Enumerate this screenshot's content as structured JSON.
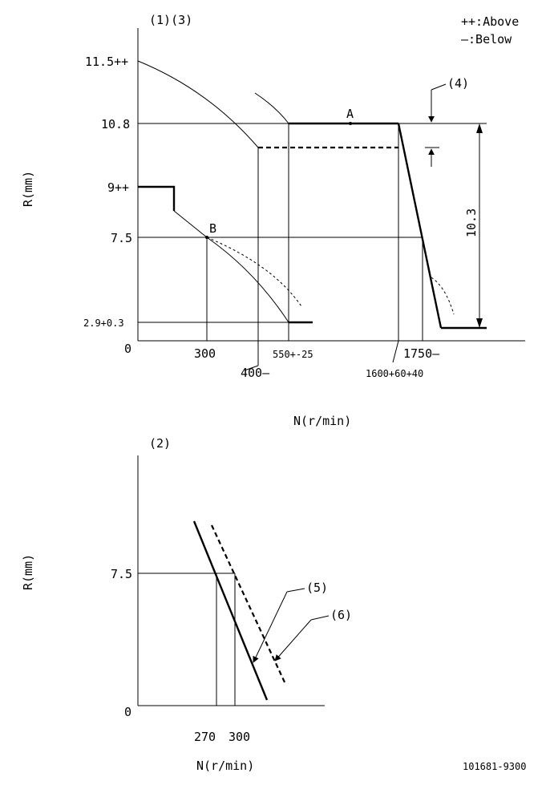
{
  "legend": {
    "above": "++:Above",
    "below": "—:Below"
  },
  "top_chart": {
    "label": "(1)(3)",
    "ylabel": "R(mm)",
    "xlabel": "N(r/min)",
    "y_ticks": [
      "11.5++",
      "10.8",
      "9++",
      "7.5",
      "2.9+0.3",
      "0"
    ],
    "x_ticks": [
      "300",
      "400—",
      "550+-25",
      "1600+60+40",
      "1750—"
    ],
    "point_a": "A",
    "point_b": "B",
    "callout_4": "(4)",
    "dimension": "10.3"
  },
  "bottom_chart": {
    "label": "(2)",
    "ylabel": "R(mm)",
    "xlabel": "N(r/min)",
    "y_ticks": [
      "7.5",
      "0"
    ],
    "x_ticks": [
      "270",
      "300"
    ],
    "callout_5": "(5)",
    "callout_6": "(6)"
  },
  "doc_number": "101681-9300"
}
